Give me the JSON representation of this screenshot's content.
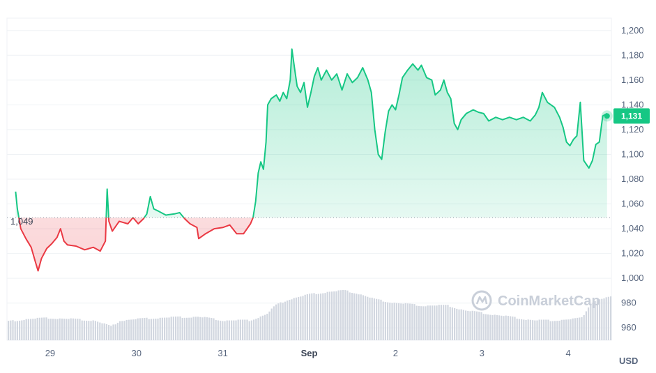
{
  "chart_data": {
    "type": "area",
    "ylim": [
      950,
      1210
    ],
    "y_ticks": [
      1200,
      1180,
      1160,
      1140,
      1120,
      1100,
      1080,
      1060,
      1040,
      1020,
      1000,
      980,
      960
    ],
    "x_ticks": [
      "29",
      "30",
      "31",
      "Sep",
      "2",
      "3",
      "4"
    ],
    "x_tick_bold": "Sep",
    "unit_label": "USD",
    "baseline": 1049,
    "baseline_label": "1,049",
    "current_price": 1131,
    "current_price_label": "1,131",
    "colors": {
      "up": "#16c784",
      "down": "#ea3943",
      "volume": "#d2d7e0",
      "tag": "#16c784"
    },
    "watermark": "CoinMarketCap",
    "price_series": [
      [
        28.6,
        1070
      ],
      [
        28.62,
        1056
      ],
      [
        28.66,
        1040
      ],
      [
        28.72,
        1032
      ],
      [
        28.78,
        1025
      ],
      [
        28.83,
        1013
      ],
      [
        28.86,
        1006
      ],
      [
        28.9,
        1016
      ],
      [
        28.96,
        1024
      ],
      [
        29.02,
        1028
      ],
      [
        29.08,
        1033
      ],
      [
        29.12,
        1040
      ],
      [
        29.16,
        1030
      ],
      [
        29.2,
        1027
      ],
      [
        29.3,
        1026
      ],
      [
        29.4,
        1023
      ],
      [
        29.5,
        1025
      ],
      [
        29.58,
        1022
      ],
      [
        29.64,
        1030
      ],
      [
        29.66,
        1072
      ],
      [
        29.68,
        1046
      ],
      [
        29.72,
        1038
      ],
      [
        29.8,
        1046
      ],
      [
        29.9,
        1044
      ],
      [
        29.96,
        1049
      ],
      [
        30.02,
        1044
      ],
      [
        30.08,
        1048
      ],
      [
        30.12,
        1052
      ],
      [
        30.16,
        1066
      ],
      [
        30.2,
        1056
      ],
      [
        30.26,
        1054
      ],
      [
        30.34,
        1051
      ],
      [
        30.44,
        1052
      ],
      [
        30.5,
        1053
      ],
      [
        30.56,
        1048
      ],
      [
        30.62,
        1044
      ],
      [
        30.7,
        1041
      ],
      [
        30.72,
        1032
      ],
      [
        30.8,
        1036
      ],
      [
        30.9,
        1040
      ],
      [
        31.0,
        1041
      ],
      [
        31.08,
        1043
      ],
      [
        31.16,
        1036
      ],
      [
        31.24,
        1036
      ],
      [
        31.32,
        1044
      ],
      [
        31.35,
        1049
      ],
      [
        31.38,
        1062
      ],
      [
        31.41,
        1085
      ],
      [
        31.44,
        1094
      ],
      [
        31.47,
        1088
      ],
      [
        31.5,
        1110
      ],
      [
        31.52,
        1140
      ],
      [
        31.56,
        1145
      ],
      [
        31.62,
        1148
      ],
      [
        31.66,
        1143
      ],
      [
        31.7,
        1150
      ],
      [
        31.74,
        1145
      ],
      [
        31.78,
        1160
      ],
      [
        31.8,
        1185
      ],
      [
        31.83,
        1170
      ],
      [
        31.86,
        1155
      ],
      [
        31.9,
        1150
      ],
      [
        31.94,
        1158
      ],
      [
        31.98,
        1138
      ],
      [
        32.02,
        1150
      ],
      [
        32.06,
        1163
      ],
      [
        32.1,
        1170
      ],
      [
        32.14,
        1160
      ],
      [
        32.2,
        1168
      ],
      [
        32.26,
        1160
      ],
      [
        32.32,
        1165
      ],
      [
        32.38,
        1152
      ],
      [
        32.44,
        1165
      ],
      [
        32.5,
        1158
      ],
      [
        32.56,
        1162
      ],
      [
        32.62,
        1170
      ],
      [
        32.68,
        1160
      ],
      [
        32.72,
        1150
      ],
      [
        32.76,
        1120
      ],
      [
        32.8,
        1100
      ],
      [
        32.84,
        1096
      ],
      [
        32.88,
        1118
      ],
      [
        32.92,
        1135
      ],
      [
        32.96,
        1140
      ],
      [
        33.0,
        1136
      ],
      [
        33.04,
        1148
      ],
      [
        33.08,
        1162
      ],
      [
        33.14,
        1168
      ],
      [
        33.2,
        1173
      ],
      [
        33.26,
        1168
      ],
      [
        33.3,
        1172
      ],
      [
        33.36,
        1162
      ],
      [
        33.42,
        1160
      ],
      [
        33.46,
        1148
      ],
      [
        33.52,
        1152
      ],
      [
        33.56,
        1160
      ],
      [
        33.6,
        1150
      ],
      [
        33.64,
        1145
      ],
      [
        33.68,
        1125
      ],
      [
        33.72,
        1120
      ],
      [
        33.76,
        1128
      ],
      [
        33.82,
        1133
      ],
      [
        33.9,
        1136
      ],
      [
        33.96,
        1134
      ],
      [
        34.02,
        1133
      ],
      [
        34.08,
        1127
      ],
      [
        34.16,
        1130
      ],
      [
        34.24,
        1128
      ],
      [
        34.32,
        1130
      ],
      [
        34.4,
        1128
      ],
      [
        34.48,
        1130
      ],
      [
        34.56,
        1127
      ],
      [
        34.62,
        1132
      ],
      [
        34.66,
        1138
      ],
      [
        34.7,
        1150
      ],
      [
        34.76,
        1142
      ],
      [
        34.84,
        1138
      ],
      [
        34.9,
        1130
      ],
      [
        34.94,
        1122
      ],
      [
        34.98,
        1110
      ],
      [
        35.02,
        1107
      ],
      [
        35.06,
        1112
      ],
      [
        35.1,
        1115
      ],
      [
        35.14,
        1142
      ],
      [
        35.18,
        1095
      ],
      [
        35.24,
        1089
      ],
      [
        35.28,
        1095
      ],
      [
        35.32,
        1108
      ],
      [
        35.36,
        1110
      ],
      [
        35.4,
        1131
      ],
      [
        35.45,
        1133
      ]
    ],
    "volume_series": [
      [
        28.5,
        965
      ],
      [
        28.7,
        967
      ],
      [
        29.0,
        968
      ],
      [
        29.5,
        966
      ],
      [
        29.7,
        961
      ],
      [
        29.8,
        966
      ],
      [
        30.2,
        968
      ],
      [
        30.7,
        969
      ],
      [
        31.0,
        966
      ],
      [
        31.3,
        966
      ],
      [
        31.5,
        971
      ],
      [
        31.6,
        978
      ],
      [
        31.75,
        983
      ],
      [
        32.0,
        987
      ],
      [
        32.2,
        989
      ],
      [
        32.4,
        990
      ],
      [
        32.55,
        988
      ],
      [
        32.75,
        983
      ],
      [
        33.0,
        980
      ],
      [
        33.3,
        978
      ],
      [
        33.6,
        978
      ],
      [
        33.8,
        974
      ],
      [
        34.2,
        970
      ],
      [
        34.6,
        966
      ],
      [
        34.8,
        966
      ],
      [
        35.05,
        967
      ],
      [
        35.15,
        968
      ],
      [
        35.25,
        980
      ],
      [
        35.35,
        983
      ],
      [
        35.5,
        985
      ]
    ],
    "x_domain": [
      28.5,
      35.5
    ]
  }
}
